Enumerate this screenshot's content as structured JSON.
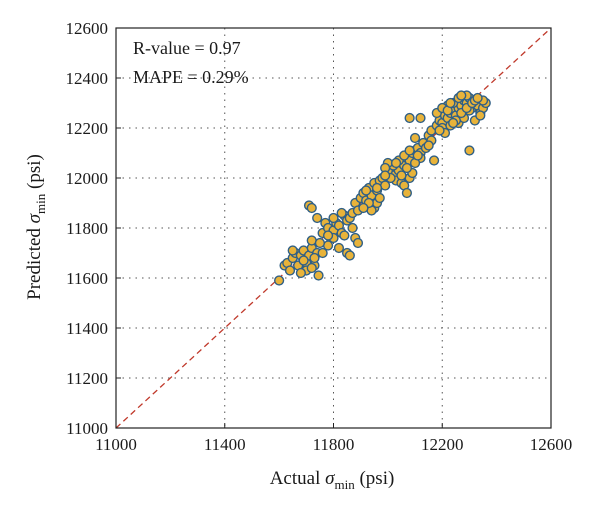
{
  "chart_data": {
    "type": "scatter",
    "title": "",
    "xlabel": {
      "prefix": "Actual ",
      "symbol": "σ",
      "subscript": "min",
      "suffix": " (psi)"
    },
    "ylabel": {
      "prefix": "Predicted ",
      "symbol": "σ",
      "subscript": "min",
      "suffix": " (psi)"
    },
    "xlim": [
      11000,
      12600
    ],
    "ylim": [
      11000,
      12600
    ],
    "xticks": [
      "11000",
      "11400",
      "11800",
      "12200",
      "12600"
    ],
    "yticks": [
      "11000",
      "11200",
      "11400",
      "11600",
      "11800",
      "12000",
      "12200",
      "12400",
      "12600"
    ],
    "grid": true,
    "annotations": [
      "R-value = 0.97",
      "MAPE = 0.29%"
    ],
    "reference_line": {
      "type": "y=x",
      "color": "#c0392b",
      "style": "dashed"
    },
    "marker": {
      "fill": "#e8b33a",
      "stroke": "#2f5f86"
    },
    "series": [
      {
        "points": [
          [
            11600,
            11590
          ],
          [
            11620,
            11650
          ],
          [
            11630,
            11660
          ],
          [
            11640,
            11630
          ],
          [
            11650,
            11680
          ],
          [
            11660,
            11700
          ],
          [
            11670,
            11650
          ],
          [
            11680,
            11690
          ],
          [
            11690,
            11710
          ],
          [
            11700,
            11660
          ],
          [
            11710,
            11690
          ],
          [
            11720,
            11720
          ],
          [
            11730,
            11650
          ],
          [
            11740,
            11700
          ],
          [
            11745,
            11610
          ],
          [
            11700,
            11630
          ],
          [
            11720,
            11750
          ],
          [
            11710,
            11890
          ],
          [
            11720,
            11880
          ],
          [
            11740,
            11840
          ],
          [
            11760,
            11780
          ],
          [
            11770,
            11820
          ],
          [
            11780,
            11800
          ],
          [
            11790,
            11760
          ],
          [
            11800,
            11790
          ],
          [
            11810,
            11820
          ],
          [
            11820,
            11810
          ],
          [
            11830,
            11780
          ],
          [
            11840,
            11850
          ],
          [
            11850,
            11830
          ],
          [
            11860,
            11840
          ],
          [
            11870,
            11800
          ],
          [
            11880,
            11760
          ],
          [
            11890,
            11740
          ],
          [
            11800,
            11760
          ],
          [
            11820,
            11720
          ],
          [
            11840,
            11770
          ],
          [
            11850,
            11700
          ],
          [
            11860,
            11690
          ],
          [
            11780,
            11730
          ],
          [
            11870,
            11860
          ],
          [
            11880,
            11900
          ],
          [
            11890,
            11870
          ],
          [
            11900,
            11920
          ],
          [
            11910,
            11940
          ],
          [
            11920,
            11910
          ],
          [
            11930,
            11960
          ],
          [
            11940,
            11930
          ],
          [
            11950,
            11980
          ],
          [
            11960,
            11950
          ],
          [
            11970,
            11990
          ],
          [
            11980,
            12000
          ],
          [
            11990,
            11970
          ],
          [
            12000,
            12020
          ],
          [
            12010,
            12040
          ],
          [
            12020,
            12010
          ],
          [
            12030,
            11990
          ],
          [
            12040,
            12030
          ],
          [
            12050,
            12060
          ],
          [
            12060,
            12050
          ],
          [
            12070,
            12080
          ],
          [
            12080,
            12070
          ],
          [
            12090,
            12100
          ],
          [
            12100,
            12110
          ],
          [
            12110,
            12120
          ],
          [
            12120,
            12100
          ],
          [
            12130,
            12140
          ],
          [
            12050,
            11980
          ],
          [
            12060,
            11970
          ],
          [
            12070,
            11940
          ],
          [
            12080,
            12000
          ],
          [
            12090,
            12020
          ],
          [
            11950,
            11880
          ],
          [
            11960,
            11900
          ],
          [
            11940,
            11870
          ],
          [
            12000,
            12030
          ],
          [
            12020,
            12050
          ],
          [
            12040,
            12070
          ],
          [
            12060,
            12090
          ],
          [
            12080,
            12110
          ],
          [
            12150,
            12170
          ],
          [
            12160,
            12190
          ],
          [
            12170,
            12070
          ],
          [
            12180,
            12210
          ],
          [
            12190,
            12230
          ],
          [
            12200,
            12220
          ],
          [
            12210,
            12250
          ],
          [
            12220,
            12240
          ],
          [
            12230,
            12260
          ],
          [
            12240,
            12270
          ],
          [
            12250,
            12250
          ],
          [
            12260,
            12280
          ],
          [
            12270,
            12290
          ],
          [
            12280,
            12310
          ],
          [
            12290,
            12300
          ],
          [
            12300,
            12320
          ],
          [
            12310,
            12280
          ],
          [
            12320,
            12300
          ],
          [
            12330,
            12290
          ],
          [
            12340,
            12260
          ],
          [
            12350,
            12280
          ],
          [
            12360,
            12300
          ],
          [
            12220,
            12290
          ],
          [
            12240,
            12300
          ],
          [
            12260,
            12220
          ],
          [
            12280,
            12240
          ],
          [
            12300,
            12270
          ],
          [
            12320,
            12230
          ],
          [
            12340,
            12250
          ],
          [
            12200,
            12200
          ],
          [
            12210,
            12180
          ],
          [
            12230,
            12210
          ],
          [
            12250,
            12230
          ],
          [
            12270,
            12260
          ],
          [
            12290,
            12280
          ],
          [
            12310,
            12300
          ],
          [
            12300,
            12110
          ],
          [
            12320,
            12310
          ],
          [
            12290,
            12330
          ],
          [
            12260,
            12320
          ],
          [
            12080,
            12240
          ],
          [
            12120,
            12240
          ],
          [
            12000,
            12060
          ],
          [
            12100,
            12160
          ],
          [
            12140,
            12120
          ],
          [
            11990,
            12040
          ],
          [
            12010,
            12000
          ],
          [
            11930,
            11900
          ],
          [
            11970,
            11920
          ],
          [
            11910,
            11880
          ],
          [
            11760,
            11700
          ],
          [
            11720,
            11640
          ],
          [
            11680,
            11620
          ],
          [
            11650,
            11710
          ],
          [
            11690,
            11670
          ],
          [
            11730,
            11680
          ],
          [
            11750,
            11740
          ],
          [
            11780,
            11770
          ],
          [
            11800,
            11840
          ],
          [
            11830,
            11860
          ],
          [
            12180,
            12260
          ],
          [
            12200,
            12280
          ],
          [
            12220,
            12270
          ],
          [
            12240,
            12220
          ],
          [
            12160,
            12150
          ],
          [
            12120,
            12080
          ],
          [
            12100,
            12060
          ],
          [
            12050,
            12010
          ],
          [
            11990,
            12010
          ],
          [
            11920,
            11950
          ],
          [
            12350,
            12310
          ],
          [
            12330,
            12320
          ],
          [
            12270,
            12330
          ],
          [
            12230,
            12300
          ],
          [
            12190,
            12190
          ],
          [
            12150,
            12130
          ],
          [
            12110,
            12090
          ],
          [
            12070,
            12040
          ],
          [
            12030,
            12060
          ],
          [
            11960,
            11960
          ]
        ]
      }
    ]
  }
}
